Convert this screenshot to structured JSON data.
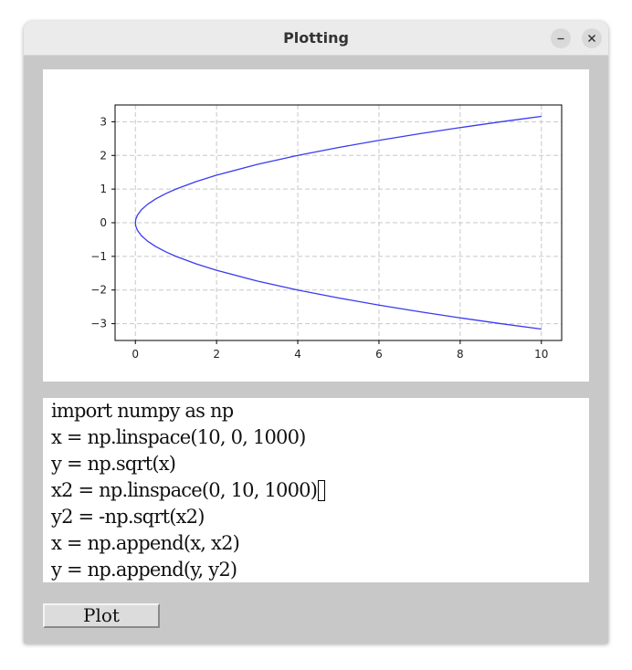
{
  "window": {
    "title": "Plotting"
  },
  "editor": {
    "lines": [
      "import numpy as np",
      "x = np.linspace(10, 0, 1000)",
      "y = np.sqrt(x)",
      "x2 = np.linspace(0, 10, 1000)",
      "y2 = -np.sqrt(x2)",
      "x = np.append(x, x2)",
      "y = np.append(y, y2)"
    ],
    "cursor_line": 3
  },
  "buttons": {
    "plot_label": "Plot"
  },
  "icons": {
    "minimize": "minimize-icon",
    "close": "close-icon"
  },
  "colors": {
    "line": "#3a3af0",
    "grid": "#c8c8c8",
    "window_bg": "#c8c8c8",
    "titlebar_bg": "#ebebeb"
  },
  "chart_data": {
    "type": "line",
    "title": "",
    "xlabel": "",
    "ylabel": "",
    "xlim": [
      -0.5,
      10.5
    ],
    "ylim": [
      -3.5,
      3.5
    ],
    "xticks": [
      0,
      2,
      4,
      6,
      8,
      10
    ],
    "xtick_labels": [
      "0",
      "2",
      "4",
      "6",
      "8",
      "10"
    ],
    "yticks": [
      3,
      2,
      1,
      0,
      -1,
      -2,
      -3
    ],
    "ytick_labels": [
      "3",
      "2",
      "1",
      "0",
      "−1",
      "−2",
      "−3"
    ],
    "grid": true,
    "grid_style": "dashed",
    "series": [
      {
        "color": "#3a3af0",
        "x": [
          10,
          9,
          8,
          7,
          6,
          5,
          4,
          3,
          2,
          1.5,
          1,
          0.75,
          0.5,
          0.3,
          0.15,
          0.05,
          0.01,
          0,
          0.01,
          0.05,
          0.15,
          0.3,
          0.5,
          0.75,
          1,
          1.5,
          2,
          3,
          4,
          5,
          6,
          7,
          8,
          9,
          10
        ],
        "y": [
          3.162,
          3.0,
          2.828,
          2.646,
          2.449,
          2.236,
          2.0,
          1.732,
          1.414,
          1.225,
          1.0,
          0.866,
          0.707,
          0.548,
          0.387,
          0.224,
          0.1,
          0,
          -0.1,
          -0.224,
          -0.387,
          -0.548,
          -0.707,
          -0.866,
          -1.0,
          -1.225,
          -1.414,
          -1.732,
          -2.0,
          -2.236,
          -2.449,
          -2.646,
          -2.828,
          -3.0,
          -3.162
        ]
      }
    ]
  }
}
